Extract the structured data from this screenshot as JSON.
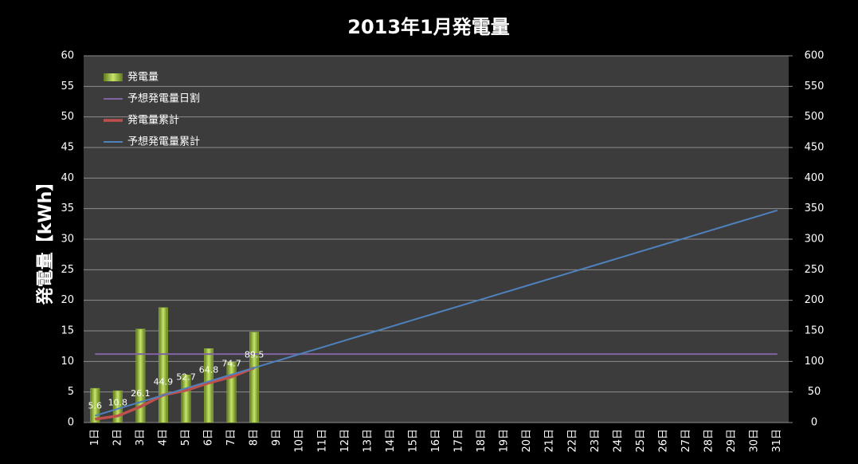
{
  "chart_data": {
    "type": "bar-line",
    "title": "2013年1月発電量",
    "ylabel": "発電量【kWh】",
    "categories": [
      "1日",
      "2日",
      "3日",
      "4日",
      "5日",
      "6日",
      "7日",
      "8日",
      "9日",
      "10日",
      "11日",
      "12日",
      "13日",
      "14日",
      "15日",
      "16日",
      "17日",
      "18日",
      "19日",
      "20日",
      "21日",
      "22日",
      "23日",
      "24日",
      "25日",
      "26日",
      "27日",
      "28日",
      "29日",
      "30日",
      "31日"
    ],
    "series": [
      {
        "name": "発電量",
        "kind": "bar",
        "color": "#9bbb3b",
        "values": [
          5.6,
          5.2,
          15.3,
          18.8,
          7.8,
          12.1,
          9.9,
          14.8,
          null,
          null,
          null,
          null,
          null,
          null,
          null,
          null,
          null,
          null,
          null,
          null,
          null,
          null,
          null,
          null,
          null,
          null,
          null,
          null,
          null,
          null,
          null
        ]
      },
      {
        "name": "予想発電量日割",
        "kind": "line",
        "color": "#8064a2",
        "values": [
          11.2,
          11.2,
          11.2,
          11.2,
          11.2,
          11.2,
          11.2,
          11.2,
          11.2,
          11.2,
          11.2,
          11.2,
          11.2,
          11.2,
          11.2,
          11.2,
          11.2,
          11.2,
          11.2,
          11.2,
          11.2,
          11.2,
          11.2,
          11.2,
          11.2,
          11.2,
          11.2,
          11.2,
          11.2,
          11.2,
          11.2
        ]
      },
      {
        "name": "発電量累計",
        "kind": "line",
        "axis": "y2",
        "color": "#c0504d",
        "labels": true,
        "values": [
          5.6,
          10.8,
          26.1,
          44.9,
          52.7,
          64.8,
          74.7,
          89.5,
          null,
          null,
          null,
          null,
          null,
          null,
          null,
          null,
          null,
          null,
          null,
          null,
          null,
          null,
          null,
          null,
          null,
          null,
          null,
          null,
          null,
          null,
          null
        ]
      },
      {
        "name": "予想発電量累計",
        "kind": "line",
        "axis": "y2",
        "color": "#4f81bd",
        "values": [
          11.2,
          22.4,
          33.6,
          44.8,
          56,
          67.2,
          78.4,
          89.6,
          100.8,
          112,
          123.2,
          134.4,
          145.6,
          156.8,
          168,
          179.2,
          190.4,
          201.6,
          212.8,
          224,
          235.2,
          246.4,
          257.6,
          268.8,
          280,
          291.2,
          302.4,
          313.6,
          324.8,
          336,
          347.2
        ]
      }
    ],
    "ylim": [
      0,
      60
    ],
    "yticks": [
      0,
      5,
      10,
      15,
      20,
      25,
      30,
      35,
      40,
      45,
      50,
      55,
      60
    ],
    "y2lim": [
      0,
      600
    ],
    "y2ticks": [
      0,
      50,
      100,
      150,
      200,
      250,
      300,
      350,
      400,
      450,
      500,
      550,
      600
    ],
    "grid": true,
    "legend": "upper left"
  }
}
